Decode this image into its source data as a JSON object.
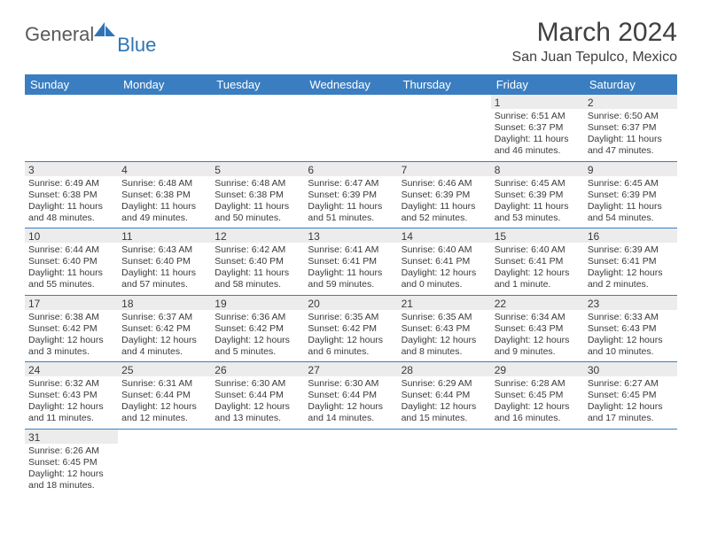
{
  "logo": {
    "main": "General",
    "accent": "Blue"
  },
  "title": "March 2024",
  "location": "San Juan Tepulco, Mexico",
  "colors": {
    "header_bg": "#3a7ec1",
    "header_text": "#ffffff",
    "shade": "#ececec",
    "rule": "#3a7ec1"
  },
  "weekdays": [
    "Sunday",
    "Monday",
    "Tuesday",
    "Wednesday",
    "Thursday",
    "Friday",
    "Saturday"
  ],
  "weeks": [
    [
      null,
      null,
      null,
      null,
      null,
      {
        "n": "1",
        "sr": "Sunrise: 6:51 AM",
        "ss": "Sunset: 6:37 PM",
        "d1": "Daylight: 11 hours",
        "d2": "and 46 minutes."
      },
      {
        "n": "2",
        "sr": "Sunrise: 6:50 AM",
        "ss": "Sunset: 6:37 PM",
        "d1": "Daylight: 11 hours",
        "d2": "and 47 minutes."
      }
    ],
    [
      {
        "n": "3",
        "sr": "Sunrise: 6:49 AM",
        "ss": "Sunset: 6:38 PM",
        "d1": "Daylight: 11 hours",
        "d2": "and 48 minutes."
      },
      {
        "n": "4",
        "sr": "Sunrise: 6:48 AM",
        "ss": "Sunset: 6:38 PM",
        "d1": "Daylight: 11 hours",
        "d2": "and 49 minutes."
      },
      {
        "n": "5",
        "sr": "Sunrise: 6:48 AM",
        "ss": "Sunset: 6:38 PM",
        "d1": "Daylight: 11 hours",
        "d2": "and 50 minutes."
      },
      {
        "n": "6",
        "sr": "Sunrise: 6:47 AM",
        "ss": "Sunset: 6:39 PM",
        "d1": "Daylight: 11 hours",
        "d2": "and 51 minutes."
      },
      {
        "n": "7",
        "sr": "Sunrise: 6:46 AM",
        "ss": "Sunset: 6:39 PM",
        "d1": "Daylight: 11 hours",
        "d2": "and 52 minutes."
      },
      {
        "n": "8",
        "sr": "Sunrise: 6:45 AM",
        "ss": "Sunset: 6:39 PM",
        "d1": "Daylight: 11 hours",
        "d2": "and 53 minutes."
      },
      {
        "n": "9",
        "sr": "Sunrise: 6:45 AM",
        "ss": "Sunset: 6:39 PM",
        "d1": "Daylight: 11 hours",
        "d2": "and 54 minutes."
      }
    ],
    [
      {
        "n": "10",
        "sr": "Sunrise: 6:44 AM",
        "ss": "Sunset: 6:40 PM",
        "d1": "Daylight: 11 hours",
        "d2": "and 55 minutes."
      },
      {
        "n": "11",
        "sr": "Sunrise: 6:43 AM",
        "ss": "Sunset: 6:40 PM",
        "d1": "Daylight: 11 hours",
        "d2": "and 57 minutes."
      },
      {
        "n": "12",
        "sr": "Sunrise: 6:42 AM",
        "ss": "Sunset: 6:40 PM",
        "d1": "Daylight: 11 hours",
        "d2": "and 58 minutes."
      },
      {
        "n": "13",
        "sr": "Sunrise: 6:41 AM",
        "ss": "Sunset: 6:41 PM",
        "d1": "Daylight: 11 hours",
        "d2": "and 59 minutes."
      },
      {
        "n": "14",
        "sr": "Sunrise: 6:40 AM",
        "ss": "Sunset: 6:41 PM",
        "d1": "Daylight: 12 hours",
        "d2": "and 0 minutes."
      },
      {
        "n": "15",
        "sr": "Sunrise: 6:40 AM",
        "ss": "Sunset: 6:41 PM",
        "d1": "Daylight: 12 hours",
        "d2": "and 1 minute."
      },
      {
        "n": "16",
        "sr": "Sunrise: 6:39 AM",
        "ss": "Sunset: 6:41 PM",
        "d1": "Daylight: 12 hours",
        "d2": "and 2 minutes."
      }
    ],
    [
      {
        "n": "17",
        "sr": "Sunrise: 6:38 AM",
        "ss": "Sunset: 6:42 PM",
        "d1": "Daylight: 12 hours",
        "d2": "and 3 minutes."
      },
      {
        "n": "18",
        "sr": "Sunrise: 6:37 AM",
        "ss": "Sunset: 6:42 PM",
        "d1": "Daylight: 12 hours",
        "d2": "and 4 minutes."
      },
      {
        "n": "19",
        "sr": "Sunrise: 6:36 AM",
        "ss": "Sunset: 6:42 PM",
        "d1": "Daylight: 12 hours",
        "d2": "and 5 minutes."
      },
      {
        "n": "20",
        "sr": "Sunrise: 6:35 AM",
        "ss": "Sunset: 6:42 PM",
        "d1": "Daylight: 12 hours",
        "d2": "and 6 minutes."
      },
      {
        "n": "21",
        "sr": "Sunrise: 6:35 AM",
        "ss": "Sunset: 6:43 PM",
        "d1": "Daylight: 12 hours",
        "d2": "and 8 minutes."
      },
      {
        "n": "22",
        "sr": "Sunrise: 6:34 AM",
        "ss": "Sunset: 6:43 PM",
        "d1": "Daylight: 12 hours",
        "d2": "and 9 minutes."
      },
      {
        "n": "23",
        "sr": "Sunrise: 6:33 AM",
        "ss": "Sunset: 6:43 PM",
        "d1": "Daylight: 12 hours",
        "d2": "and 10 minutes."
      }
    ],
    [
      {
        "n": "24",
        "sr": "Sunrise: 6:32 AM",
        "ss": "Sunset: 6:43 PM",
        "d1": "Daylight: 12 hours",
        "d2": "and 11 minutes."
      },
      {
        "n": "25",
        "sr": "Sunrise: 6:31 AM",
        "ss": "Sunset: 6:44 PM",
        "d1": "Daylight: 12 hours",
        "d2": "and 12 minutes."
      },
      {
        "n": "26",
        "sr": "Sunrise: 6:30 AM",
        "ss": "Sunset: 6:44 PM",
        "d1": "Daylight: 12 hours",
        "d2": "and 13 minutes."
      },
      {
        "n": "27",
        "sr": "Sunrise: 6:30 AM",
        "ss": "Sunset: 6:44 PM",
        "d1": "Daylight: 12 hours",
        "d2": "and 14 minutes."
      },
      {
        "n": "28",
        "sr": "Sunrise: 6:29 AM",
        "ss": "Sunset: 6:44 PM",
        "d1": "Daylight: 12 hours",
        "d2": "and 15 minutes."
      },
      {
        "n": "29",
        "sr": "Sunrise: 6:28 AM",
        "ss": "Sunset: 6:45 PM",
        "d1": "Daylight: 12 hours",
        "d2": "and 16 minutes."
      },
      {
        "n": "30",
        "sr": "Sunrise: 6:27 AM",
        "ss": "Sunset: 6:45 PM",
        "d1": "Daylight: 12 hours",
        "d2": "and 17 minutes."
      }
    ],
    [
      {
        "n": "31",
        "sr": "Sunrise: 6:26 AM",
        "ss": "Sunset: 6:45 PM",
        "d1": "Daylight: 12 hours",
        "d2": "and 18 minutes."
      },
      null,
      null,
      null,
      null,
      null,
      null
    ]
  ]
}
